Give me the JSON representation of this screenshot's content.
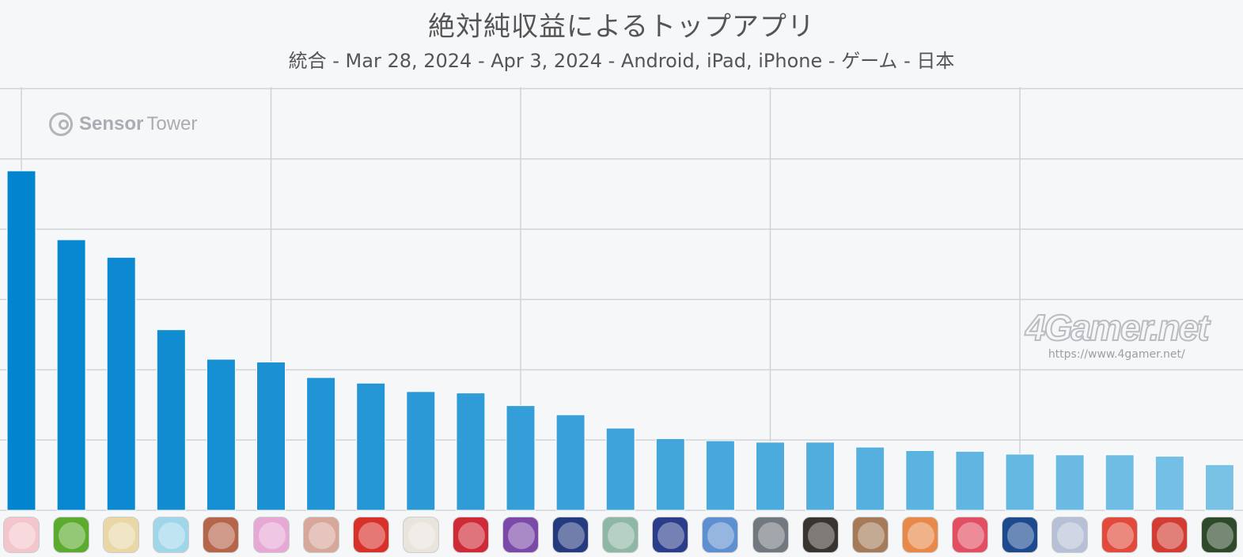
{
  "chart_data": {
    "type": "bar",
    "title": "絶対純収益によるトップアプリ",
    "subtitle": "統合 - Mar 28, 2024 - Apr 3, 2024 - Android, iPad, iPhone - ゲーム - 日本",
    "xlabel": "",
    "ylabel": "",
    "grid": true,
    "ylim": [
      0,
      6
    ],
    "categories": [
      "",
      "",
      "",
      "",
      "",
      "",
      "",
      "",
      "",
      "",
      "",
      "",
      "",
      "",
      "",
      "",
      "",
      "",
      "",
      "",
      "",
      "",
      "",
      "",
      ""
    ],
    "values": [
      4.83,
      3.85,
      3.6,
      2.57,
      2.15,
      2.11,
      1.89,
      1.81,
      1.69,
      1.67,
      1.49,
      1.36,
      1.17,
      1.02,
      0.99,
      0.97,
      0.97,
      0.9,
      0.85,
      0.84,
      0.8,
      0.79,
      0.79,
      0.77,
      0.65
    ],
    "bar_color_start": "#0284ce",
    "bar_color_end": "#79c2e6"
  },
  "watermarks": {
    "sensor_bold": "Sensor",
    "sensor_light": "Tower",
    "gamer_logo": "4Gamer.net",
    "gamer_url": "https://www.4gamer.net/"
  },
  "app_icons": [
    {
      "name": "app-icon-1",
      "color": "#f3c5cc"
    },
    {
      "name": "app-icon-2",
      "color": "#5bab2f"
    },
    {
      "name": "app-icon-3",
      "color": "#e9d8a6"
    },
    {
      "name": "app-icon-4",
      "color": "#9fd6ea"
    },
    {
      "name": "app-icon-5",
      "color": "#b5654a"
    },
    {
      "name": "app-icon-6",
      "color": "#e6a9d6"
    },
    {
      "name": "app-icon-7",
      "color": "#d7a79a"
    },
    {
      "name": "app-icon-8",
      "color": "#d8312a"
    },
    {
      "name": "app-icon-9",
      "color": "#e9e4dc"
    },
    {
      "name": "app-icon-10",
      "color": "#cf2a38"
    },
    {
      "name": "app-icon-11",
      "color": "#7b4aa8"
    },
    {
      "name": "app-icon-12",
      "color": "#263a80"
    },
    {
      "name": "app-icon-13",
      "color": "#8fb7a6"
    },
    {
      "name": "app-icon-14",
      "color": "#2b3d8a"
    },
    {
      "name": "app-icon-15",
      "color": "#5e8fd0"
    },
    {
      "name": "app-icon-16",
      "color": "#727880"
    },
    {
      "name": "app-icon-17",
      "color": "#3a3430"
    },
    {
      "name": "app-icon-18",
      "color": "#a57b5a"
    },
    {
      "name": "app-icon-19",
      "color": "#e8894a"
    },
    {
      "name": "app-icon-20",
      "color": "#e24f62"
    },
    {
      "name": "app-icon-21",
      "color": "#1d4a8f"
    },
    {
      "name": "app-icon-22",
      "color": "#b7c0d6"
    },
    {
      "name": "app-icon-23",
      "color": "#e24b3b"
    },
    {
      "name": "app-icon-24",
      "color": "#d23c32"
    },
    {
      "name": "app-icon-25",
      "color": "#2f4a2a"
    }
  ]
}
